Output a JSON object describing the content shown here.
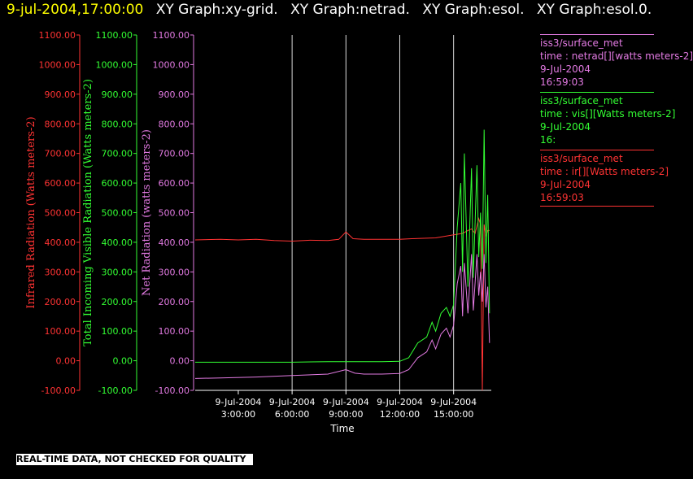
{
  "header": {
    "timestamp": "9-jul-2004,17:00:00",
    "graph_names": [
      "XY Graph:xy-grid.",
      "XY Graph:netrad.",
      "XY Graph:esol.",
      "XY Graph:esol.0."
    ]
  },
  "legend": [
    {
      "source": "iss3/surface_met",
      "field": "time : netrad[][watts meters-2]",
      "date": "9-Jul-2004",
      "time": "16:59:03",
      "color": "#e27ae2"
    },
    {
      "source": "iss3/surface_met",
      "field": "time : vis[][Watts meters-2]",
      "date": "9-Jul-2004",
      "time": "16:",
      "color": "#33ff33"
    },
    {
      "source": "iss3/surface_met",
      "field": "time : ir[][Watts meters-2]",
      "date": "9-Jul-2004",
      "time": "16:59:03",
      "color": "#ff3333"
    }
  ],
  "footer": {
    "note": "REAL-TIME DATA, NOT CHECKED FOR QUALITY"
  },
  "chart_data": {
    "type": "line",
    "xlabel": "Time",
    "x_ticks": [
      {
        "date": "9-Jul-2004",
        "time": "3:00:00",
        "hour": 3
      },
      {
        "date": "9-Jul-2004",
        "time": "6:00:00",
        "hour": 6
      },
      {
        "date": "9-Jul-2004",
        "time": "9:00:00",
        "hour": 9
      },
      {
        "date": "9-Jul-2004",
        "time": "12:00:00",
        "hour": 12
      },
      {
        "date": "9-Jul-2004",
        "time": "15:00:00",
        "hour": 15
      }
    ],
    "xlim_hours": [
      0.6,
      17.1
    ],
    "vertical_grid_hours": [
      6,
      9,
      12,
      15
    ],
    "axes": [
      {
        "id": "ir",
        "label": "Infrared Radiation (Watts meters-2)",
        "color": "#ff3333",
        "ticks": [
          "1100.00",
          "1000.00",
          "900.00",
          "800.00",
          "700.00",
          "600.00",
          "500.00",
          "400.00",
          "300.00",
          "200.00",
          "100.00",
          "0.00",
          "-100.00"
        ],
        "ylim": [
          -100,
          1100
        ]
      },
      {
        "id": "vis",
        "label": "Total Incoming Visible Radiation (Watts meters-2)",
        "color": "#33ff33",
        "ticks": [
          "1100.00",
          "1000.00",
          "900.00",
          "800.00",
          "700.00",
          "600.00",
          "500.00",
          "400.00",
          "300.00",
          "200.00",
          "100.00",
          "0.00",
          "-100.00"
        ],
        "ylim": [
          -100,
          1100
        ]
      },
      {
        "id": "net",
        "label": "Net Radiation (watts meters-2)",
        "color": "#e27ae2",
        "ticks": [
          "1100.00",
          "1000.00",
          "900.00",
          "800.00",
          "700.00",
          "600.00",
          "500.00",
          "400.00",
          "300.00",
          "200.00",
          "100.00",
          "0.00",
          "-100.00"
        ],
        "ylim": [
          -100,
          1100
        ]
      }
    ],
    "series": [
      {
        "name": "ir",
        "color": "#ff3333",
        "x": [
          0.6,
          2,
          3,
          4,
          5,
          6,
          7,
          8,
          8.6,
          9,
          9.4,
          10,
          11,
          12,
          13,
          14,
          14.5,
          15,
          15.5,
          15.8,
          16,
          16.2,
          16.4,
          16.5,
          16.6,
          16.7,
          16.8,
          16.9,
          17
        ],
        "y": [
          408,
          410,
          408,
          410,
          406,
          404,
          407,
          406,
          410,
          435,
          412,
          410,
          410,
          410,
          413,
          415,
          420,
          425,
          430,
          440,
          445,
          430,
          480,
          460,
          -100,
          460,
          420,
          440,
          440
        ]
      },
      {
        "name": "vis",
        "color": "#33ff33",
        "x": [
          0.6,
          2,
          4,
          6,
          8,
          10,
          11,
          12,
          12.5,
          13,
          13.5,
          13.8,
          14,
          14.3,
          14.6,
          14.8,
          15,
          15.2,
          15.4,
          15.5,
          15.6,
          15.8,
          16,
          16.1,
          16.3,
          16.4,
          16.5,
          16.6,
          16.7,
          16.8,
          16.9,
          17
        ],
        "y": [
          -5,
          -5,
          -5,
          -5,
          -3,
          -3,
          -3,
          -2,
          10,
          60,
          80,
          130,
          100,
          160,
          180,
          150,
          190,
          450,
          600,
          300,
          700,
          250,
          650,
          280,
          660,
          350,
          500,
          310,
          780,
          330,
          560,
          160
        ]
      },
      {
        "name": "net",
        "color": "#e27ae2",
        "x": [
          0.6,
          2,
          4,
          6,
          8,
          9,
          9.5,
          10,
          11,
          12,
          12.5,
          13,
          13.5,
          13.8,
          14,
          14.3,
          14.6,
          14.8,
          15,
          15.2,
          15.4,
          15.5,
          15.6,
          15.8,
          16,
          16.1,
          16.3,
          16.4,
          16.5,
          16.6,
          16.7,
          16.8,
          16.9,
          17
        ],
        "y": [
          -60,
          -58,
          -55,
          -50,
          -45,
          -30,
          -42,
          -45,
          -45,
          -43,
          -30,
          10,
          30,
          70,
          40,
          90,
          110,
          80,
          120,
          260,
          320,
          150,
          330,
          160,
          360,
          170,
          360,
          220,
          300,
          200,
          360,
          180,
          250,
          60
        ]
      }
    ]
  }
}
